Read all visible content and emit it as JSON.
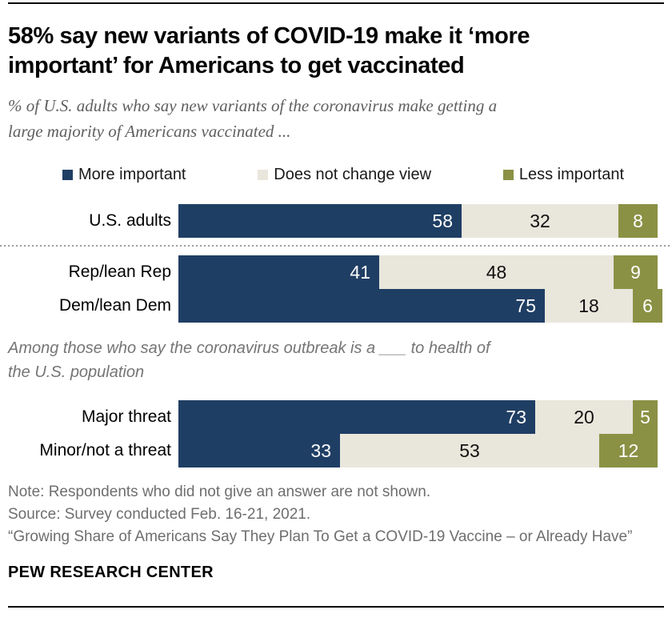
{
  "header": {
    "title_lines": [
      "58% say new variants of COVID-19 make it ‘more",
      "important’ for Americans to get vaccinated"
    ],
    "subtitle_lines": [
      "% of U.S. adults who say new variants of the coronavirus make getting a",
      "large majority of Americans vaccinated ..."
    ]
  },
  "colors": {
    "navy": "#1f3e64",
    "cream": "#e9e6dc",
    "olive": "#8a9144",
    "value_text_on_navy": "#ffffff",
    "value_text_on_cream": "#101010",
    "value_text_on_olive": "#ffffff"
  },
  "legend": {
    "items": [
      {
        "label": "More important",
        "color": "#1f3e64"
      },
      {
        "label": "Does not change view",
        "color": "#e9e6dc"
      },
      {
        "label": "Less important",
        "color": "#8a9144"
      }
    ]
  },
  "chart_data": {
    "type": "bar",
    "orientation": "horizontal",
    "stacked": true,
    "xlim": [
      0,
      100
    ],
    "grid": false,
    "legend_position": "top",
    "categories": [
      "U.S. adults",
      "Rep/lean Rep",
      "Dem/lean Dem",
      "Major threat",
      "Minor/not a threat"
    ],
    "series": [
      {
        "name": "More important",
        "color": "#1f3e64",
        "values": [
          58,
          41,
          75,
          73,
          33
        ]
      },
      {
        "name": "Does not change view",
        "color": "#e9e6dc",
        "values": [
          32,
          48,
          18,
          20,
          53
        ]
      },
      {
        "name": "Less important",
        "color": "#8a9144",
        "values": [
          8,
          9,
          6,
          5,
          12
        ]
      }
    ],
    "divider_after_index": 0,
    "group_note_after_index": 2,
    "group_note_lines": [
      "Among those who say the coronavirus outbreak is a ___ to health of",
      "the U.S. population"
    ]
  },
  "footer": {
    "note": "Note: Respondents who did not give an answer are not shown.",
    "source": "Source: Survey conducted Feb. 16-21, 2021.",
    "report": "“Growing Share of Americans Say They Plan To Get a COVID-19 Vaccine – or Already Have”",
    "brand": "PEW RESEARCH CENTER"
  }
}
